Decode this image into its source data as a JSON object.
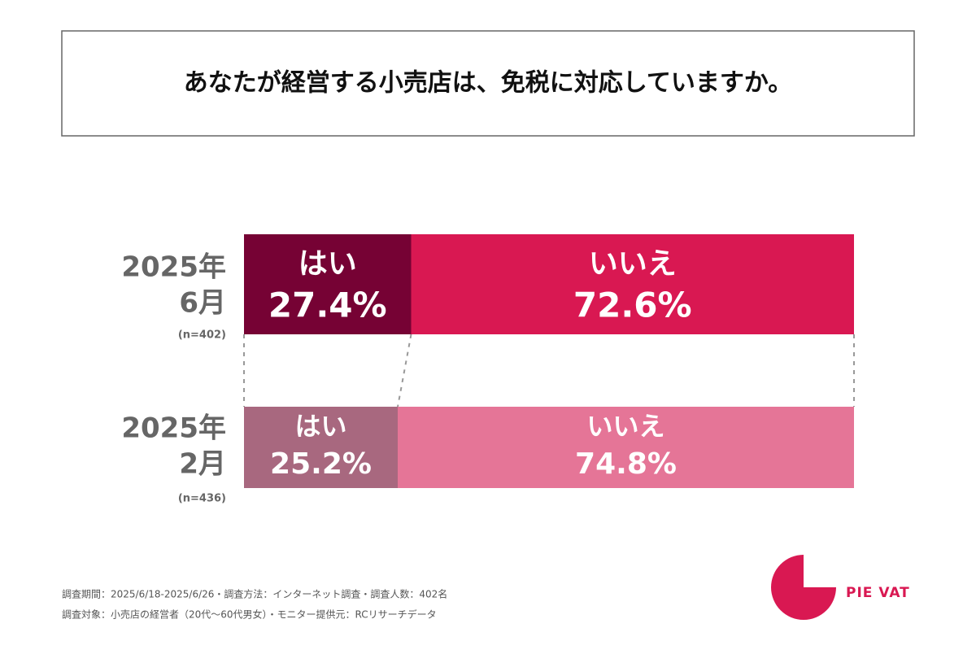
{
  "chart_data": {
    "type": "bar",
    "title": "あなたが経営する小売店は、免税に対応していますか。",
    "categories": [
      [
        "2025年",
        "6月"
      ],
      [
        "2025年",
        "2月"
      ]
    ],
    "sample_sizes": [
      "(n=402)",
      "(n=436)"
    ],
    "series": [
      {
        "name": "はい",
        "colors": [
          "#760234",
          "#a8687f"
        ],
        "values": [
          27.4,
          25.2
        ],
        "value_labels": [
          "27.4%",
          "25.2%"
        ]
      },
      {
        "name": "いいえ",
        "colors": [
          "#d91852",
          "#e57597"
        ],
        "values": [
          72.6,
          74.8
        ],
        "value_labels": [
          "72.6%",
          "74.8%"
        ]
      }
    ],
    "xlim": [
      0,
      100
    ],
    "notes": [
      "調査期間：2025/6/18-2025/6/26・調査方法：インターネット調査・調査人数：402名",
      "調査対象：小売店の経営者（20代〜60代男女）・モニター提供元：RCリサーチデータ"
    ],
    "logo": "PIE VAT"
  }
}
